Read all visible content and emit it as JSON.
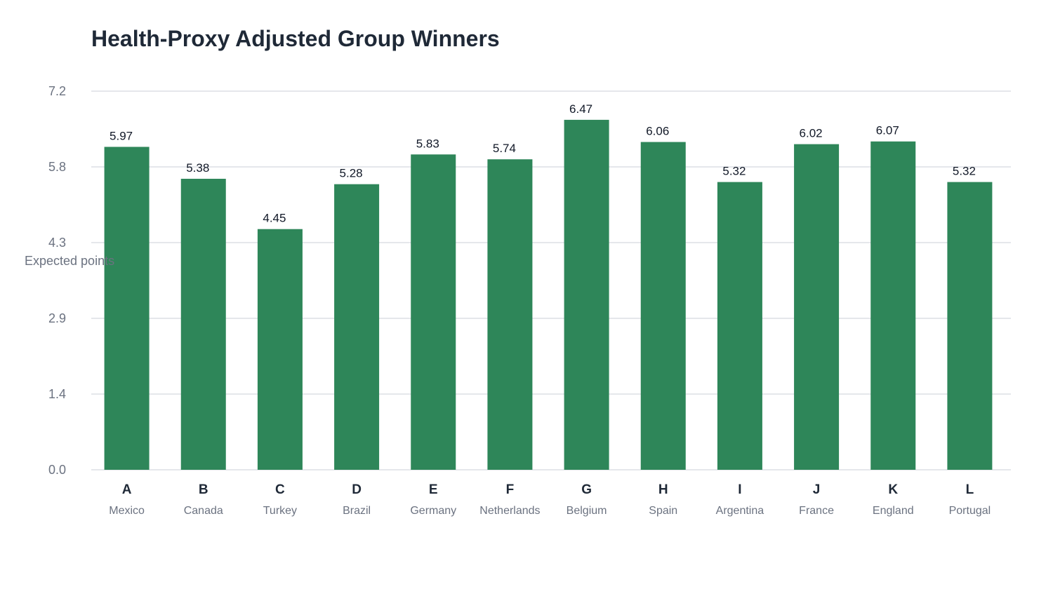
{
  "chart_data": {
    "type": "bar",
    "title": "Health-Proxy Adjusted Group Winners",
    "ylabel": "Expected points",
    "xlabel": "",
    "ylim": [
      0,
      7.0
    ],
    "y_ticks": [
      "0.0",
      "1.4",
      "2.9",
      "4.3",
      "5.8",
      "7.2"
    ],
    "grid": true,
    "bar_color": "#2e8659",
    "categories": [
      "A",
      "B",
      "C",
      "D",
      "E",
      "F",
      "G",
      "H",
      "I",
      "J",
      "K",
      "L"
    ],
    "teams": [
      "Mexico",
      "Canada",
      "Turkey",
      "Brazil",
      "Germany",
      "Netherlands",
      "Belgium",
      "Spain",
      "Argentina",
      "France",
      "England",
      "Portugal"
    ],
    "values": [
      5.97,
      5.38,
      4.45,
      5.28,
      5.83,
      5.74,
      6.47,
      6.06,
      5.32,
      6.02,
      6.07,
      5.32
    ],
    "value_labels": [
      "5.97",
      "5.38",
      "4.45",
      "5.28",
      "5.83",
      "5.74",
      "6.47",
      "6.06",
      "5.32",
      "6.02",
      "6.07",
      "5.32"
    ]
  }
}
